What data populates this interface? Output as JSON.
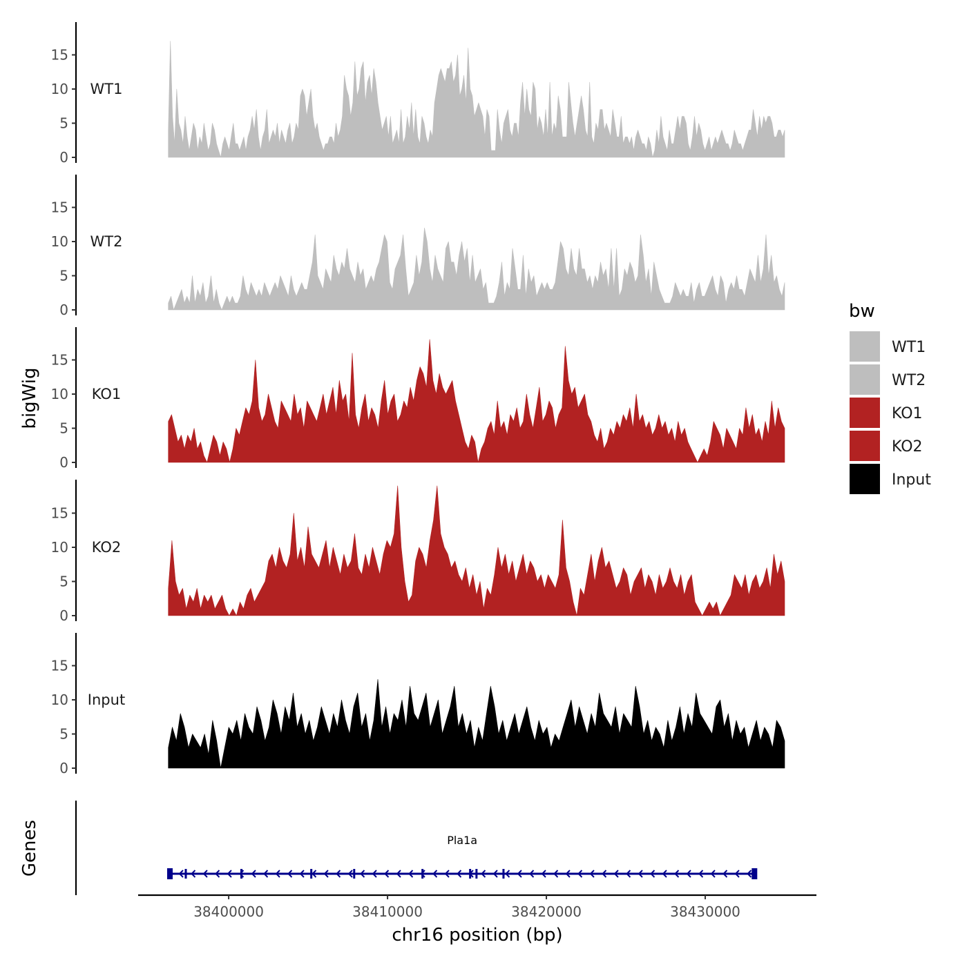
{
  "chart_data": {
    "type": "area",
    "title": "",
    "chromosome": "chr16",
    "xlabel": "chr16 position (bp)",
    "ylabel": "bigWig",
    "genes_axis_label": "Genes",
    "xlim": [
      38394300,
      38437000
    ],
    "ylim": [
      0,
      20
    ],
    "x_ticks": [
      38400000,
      38410000,
      38420000,
      38430000
    ],
    "x_tick_labels": [
      "38400000",
      "38410000",
      "38420000",
      "38430000"
    ],
    "y_ticks": [
      0,
      5,
      10,
      15
    ],
    "y_tick_labels": [
      "0",
      "5",
      "10",
      "15"
    ],
    "series": [
      {
        "name": "WT1",
        "color": "#bebebe",
        "x_start": 38396200,
        "x_end": 38435000,
        "values": [
          4,
          17,
          6,
          2,
          10,
          5,
          4,
          2,
          6,
          3,
          1,
          3,
          5,
          4,
          1,
          3,
          2,
          5,
          3,
          1,
          2,
          5,
          4,
          2,
          1,
          0,
          2,
          3,
          2,
          1,
          3,
          5,
          2,
          2,
          1,
          2,
          3,
          1,
          3,
          4,
          6,
          4,
          7,
          3,
          1,
          3,
          4,
          7,
          2,
          3,
          4,
          3,
          5,
          2,
          4,
          3,
          2,
          4,
          5,
          2,
          3,
          5,
          4,
          9,
          10,
          9,
          6,
          8,
          10,
          6,
          4,
          5,
          3,
          2,
          1,
          2,
          2,
          3,
          3,
          2,
          5,
          3,
          4,
          6,
          12,
          10,
          9,
          6,
          8,
          14,
          9,
          10,
          13,
          14,
          8,
          11,
          12,
          9,
          13,
          11,
          8,
          6,
          4,
          5,
          6,
          3,
          6,
          2,
          3,
          4,
          2,
          7,
          2,
          3,
          6,
          4,
          8,
          3,
          7,
          3,
          2,
          6,
          5,
          3,
          2,
          4,
          3,
          8,
          10,
          12,
          13,
          12,
          11,
          13,
          13,
          14,
          11,
          12,
          15,
          9,
          10,
          12,
          8,
          16,
          10,
          9,
          6,
          7,
          8,
          7,
          6,
          3,
          7,
          6,
          1,
          1,
          1,
          7,
          4,
          2,
          5,
          6,
          7,
          4,
          3,
          5,
          5,
          3,
          8,
          11,
          6,
          10,
          7,
          6,
          11,
          10,
          4,
          6,
          5,
          3,
          7,
          3,
          11,
          3,
          5,
          4,
          9,
          7,
          3,
          3,
          3,
          11,
          8,
          5,
          3,
          5,
          7,
          9,
          7,
          4,
          3,
          11,
          3,
          2,
          5,
          4,
          7,
          7,
          4,
          5,
          4,
          3,
          7,
          5,
          3,
          3,
          6,
          2,
          3,
          3,
          2,
          3,
          1,
          3,
          4,
          3,
          2,
          2,
          1,
          3,
          2,
          0,
          1,
          4,
          2,
          6,
          3,
          2,
          1,
          4,
          2,
          2,
          4,
          6,
          4,
          6,
          6,
          5,
          2,
          1,
          3,
          6,
          3,
          5,
          4,
          2,
          1,
          2,
          3,
          1,
          2,
          3,
          2,
          3,
          4,
          3,
          2,
          2,
          1,
          2,
          4,
          3,
          2,
          2,
          1,
          2,
          3,
          4,
          4,
          7,
          5,
          3,
          6,
          4,
          6,
          5,
          6,
          6,
          5,
          3,
          3,
          4,
          4,
          3,
          4
        ]
      },
      {
        "name": "WT2",
        "color": "#bebebe",
        "x_start": 38396200,
        "x_end": 38435000,
        "values": [
          1,
          2,
          0,
          1,
          2,
          3,
          1,
          2,
          1,
          5,
          1,
          3,
          2,
          4,
          1,
          2,
          5,
          1,
          3,
          1,
          0,
          1,
          2,
          1,
          2,
          1,
          1,
          2,
          5,
          3,
          2,
          4,
          3,
          2,
          3,
          2,
          4,
          3,
          2,
          3,
          4,
          3,
          5,
          4,
          3,
          2,
          5,
          3,
          2,
          3,
          4,
          3,
          3,
          5,
          7,
          11,
          5,
          4,
          3,
          6,
          5,
          4,
          8,
          6,
          5,
          7,
          6,
          9,
          6,
          5,
          4,
          7,
          5,
          6,
          3,
          4,
          5,
          4,
          6,
          7,
          9,
          11,
          10,
          4,
          3,
          6,
          7,
          8,
          11,
          6,
          2,
          3,
          4,
          8,
          5,
          7,
          12,
          10,
          6,
          4,
          8,
          6,
          5,
          4,
          9,
          10,
          7,
          7,
          5,
          8,
          10,
          7,
          9,
          4,
          8,
          4,
          5,
          6,
          3,
          4,
          1,
          1,
          1,
          2,
          4,
          7,
          2,
          4,
          3,
          9,
          6,
          3,
          3,
          8,
          2,
          6,
          4,
          5,
          2,
          3,
          4,
          3,
          4,
          3,
          3,
          4,
          7,
          10,
          9,
          6,
          5,
          9,
          6,
          5,
          9,
          6,
          6,
          4,
          5,
          3,
          5,
          4,
          7,
          5,
          6,
          3,
          9,
          3,
          9,
          2,
          3,
          6,
          5,
          7,
          6,
          4,
          5,
          11,
          8,
          4,
          6,
          2,
          7,
          5,
          3,
          2,
          1,
          1,
          1,
          2,
          4,
          3,
          2,
          3,
          2,
          2,
          4,
          1,
          3,
          4,
          2,
          2,
          3,
          4,
          5,
          3,
          2,
          5,
          4,
          1,
          3,
          4,
          3,
          5,
          3,
          3,
          2,
          4,
          6,
          5,
          4,
          8,
          4,
          6,
          11,
          5,
          8,
          4,
          5,
          3,
          2,
          4
        ]
      },
      {
        "name": "KO1",
        "color": "#b22222",
        "x_start": 38396200,
        "x_end": 38435000,
        "values": [
          6,
          7,
          5,
          3,
          4,
          2,
          4,
          3,
          5,
          2,
          3,
          1,
          0,
          2,
          4,
          3,
          1,
          3,
          2,
          0,
          2,
          5,
          4,
          6,
          8,
          7,
          9,
          15,
          8,
          6,
          7,
          10,
          8,
          6,
          5,
          9,
          8,
          7,
          6,
          10,
          7,
          8,
          5,
          9,
          8,
          7,
          6,
          8,
          10,
          7,
          9,
          11,
          7,
          12,
          9,
          10,
          6,
          16,
          7,
          5,
          8,
          10,
          6,
          8,
          7,
          5,
          9,
          12,
          7,
          9,
          10,
          6,
          7,
          9,
          8,
          11,
          9,
          12,
          14,
          13,
          11,
          18,
          12,
          10,
          13,
          11,
          10,
          11,
          12,
          9,
          7,
          5,
          3,
          2,
          4,
          3,
          0,
          2,
          3,
          5,
          6,
          4,
          9,
          5,
          6,
          4,
          7,
          6,
          8,
          5,
          6,
          10,
          7,
          5,
          8,
          11,
          6,
          7,
          9,
          8,
          5,
          7,
          8,
          17,
          12,
          10,
          11,
          8,
          9,
          10,
          7,
          6,
          4,
          3,
          5,
          2,
          3,
          5,
          4,
          6,
          5,
          7,
          6,
          8,
          5,
          10,
          6,
          7,
          5,
          6,
          4,
          5,
          7,
          5,
          6,
          4,
          5,
          3,
          6,
          4,
          5,
          3,
          2,
          1,
          0,
          1,
          2,
          1,
          3,
          6,
          5,
          4,
          2,
          5,
          4,
          3,
          2,
          5,
          4,
          8,
          5,
          7,
          4,
          5,
          3,
          6,
          4,
          9,
          5,
          8,
          6,
          5
        ]
      },
      {
        "name": "KO2",
        "color": "#b22222",
        "x_start": 38396200,
        "x_end": 38435000,
        "values": [
          4,
          11,
          5,
          3,
          4,
          1,
          3,
          2,
          4,
          1,
          3,
          2,
          3,
          1,
          2,
          3,
          1,
          0,
          1,
          0,
          2,
          1,
          3,
          4,
          2,
          3,
          4,
          5,
          8,
          9,
          7,
          10,
          8,
          7,
          9,
          15,
          8,
          10,
          7,
          13,
          9,
          8,
          7,
          9,
          11,
          7,
          10,
          8,
          6,
          9,
          7,
          8,
          12,
          7,
          6,
          9,
          7,
          10,
          8,
          6,
          9,
          11,
          10,
          12,
          19,
          10,
          5,
          2,
          3,
          8,
          10,
          9,
          7,
          11,
          14,
          19,
          12,
          10,
          9,
          7,
          8,
          6,
          5,
          7,
          4,
          6,
          3,
          5,
          1,
          4,
          3,
          6,
          10,
          7,
          9,
          6,
          8,
          5,
          7,
          9,
          6,
          8,
          7,
          5,
          6,
          4,
          6,
          5,
          4,
          6,
          14,
          7,
          5,
          2,
          0,
          4,
          3,
          6,
          9,
          5,
          8,
          10,
          7,
          8,
          6,
          4,
          5,
          7,
          6,
          3,
          5,
          6,
          7,
          4,
          6,
          5,
          3,
          6,
          4,
          5,
          7,
          5,
          4,
          6,
          3,
          5,
          6,
          2,
          1,
          0,
          1,
          2,
          1,
          2,
          0,
          1,
          2,
          3,
          6,
          5,
          4,
          6,
          3,
          5,
          6,
          4,
          5,
          7,
          4,
          9,
          6,
          8,
          5
        ]
      },
      {
        "name": "Input",
        "color": "#000000",
        "x_start": 38396200,
        "x_end": 38435000,
        "values": [
          3,
          6,
          4,
          8,
          6,
          3,
          5,
          4,
          3,
          5,
          2,
          7,
          4,
          0,
          3,
          6,
          5,
          7,
          4,
          8,
          6,
          5,
          9,
          7,
          4,
          6,
          10,
          8,
          5,
          9,
          7,
          11,
          6,
          8,
          5,
          7,
          4,
          6,
          9,
          7,
          5,
          8,
          6,
          10,
          7,
          5,
          9,
          11,
          6,
          8,
          4,
          7,
          13,
          6,
          9,
          5,
          8,
          7,
          10,
          6,
          12,
          8,
          7,
          9,
          11,
          6,
          8,
          10,
          5,
          7,
          9,
          12,
          6,
          8,
          5,
          7,
          3,
          6,
          4,
          8,
          12,
          9,
          5,
          7,
          4,
          6,
          8,
          5,
          7,
          9,
          6,
          4,
          7,
          5,
          6,
          3,
          5,
          4,
          6,
          8,
          10,
          6,
          9,
          7,
          5,
          8,
          6,
          11,
          8,
          7,
          6,
          9,
          5,
          8,
          7,
          6,
          12,
          9,
          5,
          7,
          4,
          6,
          5,
          3,
          7,
          4,
          6,
          9,
          5,
          8,
          6,
          11,
          8,
          7,
          6,
          5,
          9,
          10,
          6,
          8,
          4,
          7,
          5,
          6,
          3,
          5,
          7,
          4,
          6,
          5,
          3,
          7,
          6,
          4
        ]
      }
    ],
    "genes": [
      {
        "name": "Pla1a",
        "start": 38396300,
        "end": 38433100,
        "strand": "-",
        "color": "#00008b",
        "exons": [
          38396300,
          38397300,
          38400800,
          38405200,
          38407900,
          38412200,
          38415200,
          38415600,
          38417300,
          38433100
        ]
      }
    ],
    "legend": {
      "title": "bw",
      "position": "right",
      "entries": [
        {
          "label": "WT1",
          "color": "#bebebe"
        },
        {
          "label": "WT2",
          "color": "#bebebe"
        },
        {
          "label": "KO1",
          "color": "#b22222"
        },
        {
          "label": "KO2",
          "color": "#b22222"
        },
        {
          "label": "Input",
          "color": "#000000"
        }
      ]
    }
  }
}
